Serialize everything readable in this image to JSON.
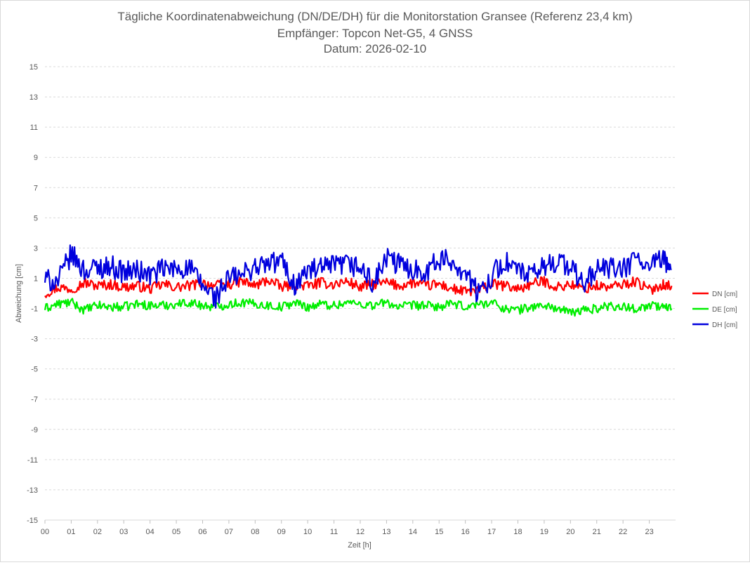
{
  "chart_data": {
    "type": "line",
    "title_lines": [
      "Tägliche Koordinatenabweichung (DN/DE/DH) für die Monitorstation Gransee (Referenz 23,4 km)",
      "Empfänger: Topcon Net-G5, 4 GNSS",
      "Datum: 2026-02-10"
    ],
    "xlabel": "Zeit [h]",
    "ylabel": "Abweichung [cm]",
    "xlim": [
      0,
      24
    ],
    "ylim": [
      -15,
      15
    ],
    "x_ticks": [
      0,
      1,
      2,
      3,
      4,
      5,
      6,
      7,
      8,
      9,
      10,
      11,
      12,
      13,
      14,
      15,
      16,
      17,
      18,
      19,
      20,
      21,
      22,
      23
    ],
    "x_tick_labels": [
      "00",
      "01",
      "02",
      "03",
      "04",
      "05",
      "06",
      "07",
      "08",
      "09",
      "10",
      "11",
      "12",
      "13",
      "14",
      "15",
      "16",
      "17",
      "18",
      "19",
      "20",
      "21",
      "22",
      "23"
    ],
    "y_ticks": [
      -15,
      -13,
      -11,
      -9,
      -7,
      -5,
      -3,
      -1,
      1,
      3,
      5,
      7,
      9,
      11,
      13,
      15
    ],
    "y_tick_labels": [
      "-15",
      "-13",
      "-11",
      "-9",
      "-7",
      "-5",
      "-3",
      "-1",
      "1",
      "3",
      "5",
      "7",
      "9",
      "11",
      "13",
      "15"
    ],
    "grid": true,
    "legend_position": "right",
    "x": [
      0,
      0.5,
      1,
      1.5,
      2,
      2.5,
      3,
      3.5,
      4,
      4.5,
      5,
      5.5,
      6,
      6.5,
      7,
      7.5,
      8,
      8.5,
      9,
      9.5,
      10,
      10.5,
      11,
      11.5,
      12,
      12.5,
      13,
      13.5,
      14,
      14.5,
      15,
      15.5,
      16,
      16.5,
      17,
      17.5,
      18,
      18.5,
      19,
      19.5,
      20,
      20.5,
      21,
      21.5,
      22,
      22.5,
      23,
      23.5,
      23.85
    ],
    "series": [
      {
        "name": "DN [cm]",
        "color": "#ff0000",
        "values": [
          0.0,
          0.4,
          0.3,
          0.7,
          0.5,
          0.6,
          0.4,
          0.5,
          0.3,
          0.6,
          0.4,
          0.5,
          0.7,
          0.5,
          0.6,
          0.8,
          0.5,
          0.9,
          0.4,
          0.6,
          0.5,
          0.7,
          0.6,
          0.8,
          0.4,
          0.6,
          0.7,
          0.5,
          0.7,
          0.5,
          0.6,
          0.3,
          0.1,
          0.2,
          0.6,
          0.5,
          0.3,
          0.6,
          0.8,
          0.4,
          0.6,
          0.3,
          0.5,
          0.4,
          0.6,
          0.8,
          0.2,
          0.6,
          0.5
        ]
      },
      {
        "name": "DE [cm]",
        "color": "#00ee00",
        "values": [
          -1.0,
          -0.7,
          -0.6,
          -1.1,
          -0.8,
          -0.9,
          -0.9,
          -0.7,
          -0.8,
          -0.8,
          -0.7,
          -0.6,
          -0.8,
          -0.9,
          -0.7,
          -0.6,
          -0.7,
          -0.8,
          -0.9,
          -0.6,
          -0.9,
          -0.7,
          -0.8,
          -0.6,
          -0.7,
          -0.8,
          -0.6,
          -0.9,
          -0.8,
          -0.8,
          -0.9,
          -0.7,
          -0.9,
          -0.7,
          -0.6,
          -1.0,
          -1.1,
          -0.9,
          -0.8,
          -1.0,
          -1.3,
          -1.1,
          -1.0,
          -0.8,
          -0.9,
          -1.0,
          -0.8,
          -0.9,
          -1.0
        ]
      },
      {
        "name": "DH [cm]",
        "color": "#0000dd",
        "values": [
          0.9,
          0.8,
          2.6,
          1.5,
          1.7,
          1.8,
          1.4,
          1.5,
          1.2,
          1.6,
          1.6,
          1.7,
          0.5,
          -0.3,
          1.0,
          1.2,
          1.8,
          1.9,
          2.2,
          0.5,
          1.5,
          1.6,
          1.8,
          1.9,
          1.7,
          0.6,
          2.3,
          1.9,
          1.6,
          1.5,
          2.2,
          2.1,
          1.4,
          -0.1,
          1.2,
          2.1,
          1.5,
          1.1,
          1.8,
          2.2,
          1.7,
          0.6,
          1.6,
          1.7,
          1.5,
          2.4,
          1.6,
          2.3,
          1.6
        ]
      }
    ]
  }
}
